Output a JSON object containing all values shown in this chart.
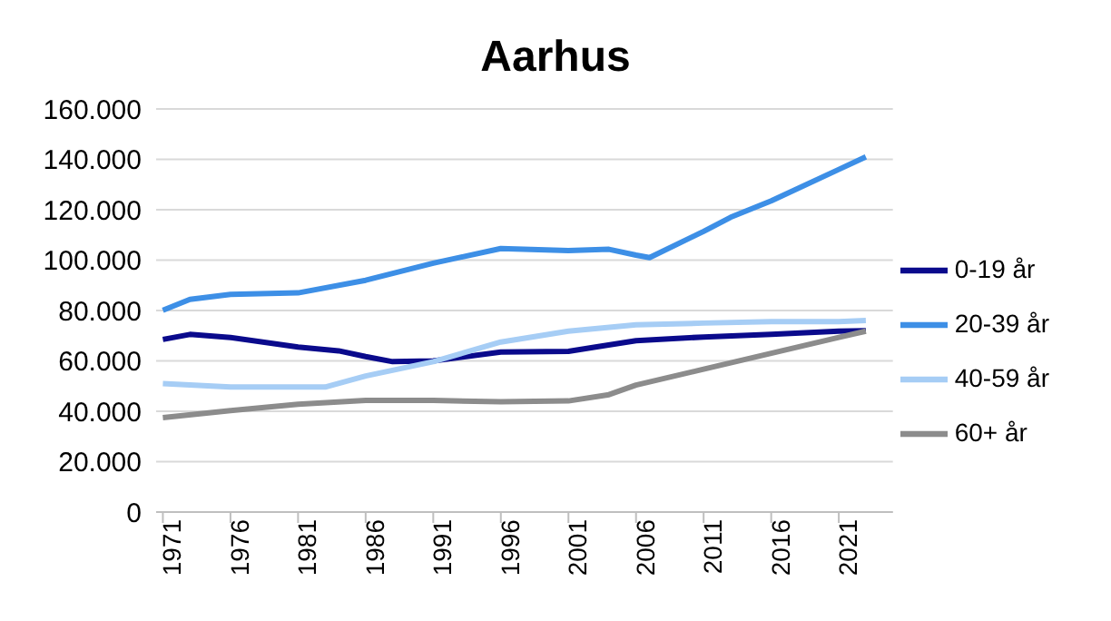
{
  "chart_data": {
    "type": "line",
    "title": "Aarhus",
    "xlim": [
      1970.5,
      2025
    ],
    "xticks": [
      1971,
      1976,
      1981,
      1986,
      1991,
      1996,
      2001,
      2006,
      2011,
      2016,
      2021
    ],
    "ylim": [
      0,
      160000
    ],
    "yticks": [
      {
        "value": 0,
        "label": "0"
      },
      {
        "value": 20000,
        "label": "20.000"
      },
      {
        "value": 40000,
        "label": "40.000"
      },
      {
        "value": 60000,
        "label": "60.000"
      },
      {
        "value": 80000,
        "label": "80.000"
      },
      {
        "value": 100000,
        "label": "100.000"
      },
      {
        "value": 120000,
        "label": "120.000"
      },
      {
        "value": 140000,
        "label": "140.000"
      },
      {
        "value": 160000,
        "label": "160.000"
      }
    ],
    "grid": "y",
    "legend": "right",
    "marker": "none",
    "line_style": "solid",
    "series": [
      {
        "name": "0-19 år",
        "color": "#0a0a8c",
        "x": [
          1971,
          1973,
          1976,
          1981,
          1984,
          1986,
          1988,
          1991,
          1996,
          2001,
          2003,
          2006,
          2011,
          2016,
          2021,
          2023
        ],
        "values": [
          68500,
          70500,
          69300,
          65500,
          64000,
          61700,
          59700,
          60000,
          63500,
          63800,
          65500,
          68000,
          69500,
          70500,
          71800,
          72000
        ]
      },
      {
        "name": "20-39 år",
        "color": "#3d8fe6",
        "x": [
          1971,
          1973,
          1976,
          1981,
          1986,
          1991,
          1996,
          2001,
          2004,
          2006,
          2007,
          2011,
          2013,
          2016,
          2021,
          2023
        ],
        "values": [
          80100,
          84400,
          86400,
          87000,
          92000,
          98800,
          104600,
          103800,
          104300,
          102000,
          101000,
          111400,
          117000,
          123500,
          136000,
          141000
        ]
      },
      {
        "name": "40-59 år",
        "color": "#a6cdf5",
        "x": [
          1971,
          1976,
          1981,
          1983,
          1986,
          1991,
          1996,
          2001,
          2006,
          2011,
          2016,
          2021,
          2023
        ],
        "values": [
          51000,
          49600,
          49600,
          49600,
          54000,
          59700,
          67500,
          71800,
          74300,
          75000,
          75600,
          75600,
          76000
        ]
      },
      {
        "name": "60+ år",
        "color": "#8c8c8c",
        "x": [
          1971,
          1976,
          1981,
          1986,
          1991,
          1996,
          2001,
          2004,
          2006,
          2011,
          2016,
          2021,
          2023
        ],
        "values": [
          37500,
          40300,
          42800,
          44300,
          44300,
          43800,
          44100,
          46600,
          50400,
          56700,
          63000,
          69300,
          71800
        ]
      }
    ]
  }
}
